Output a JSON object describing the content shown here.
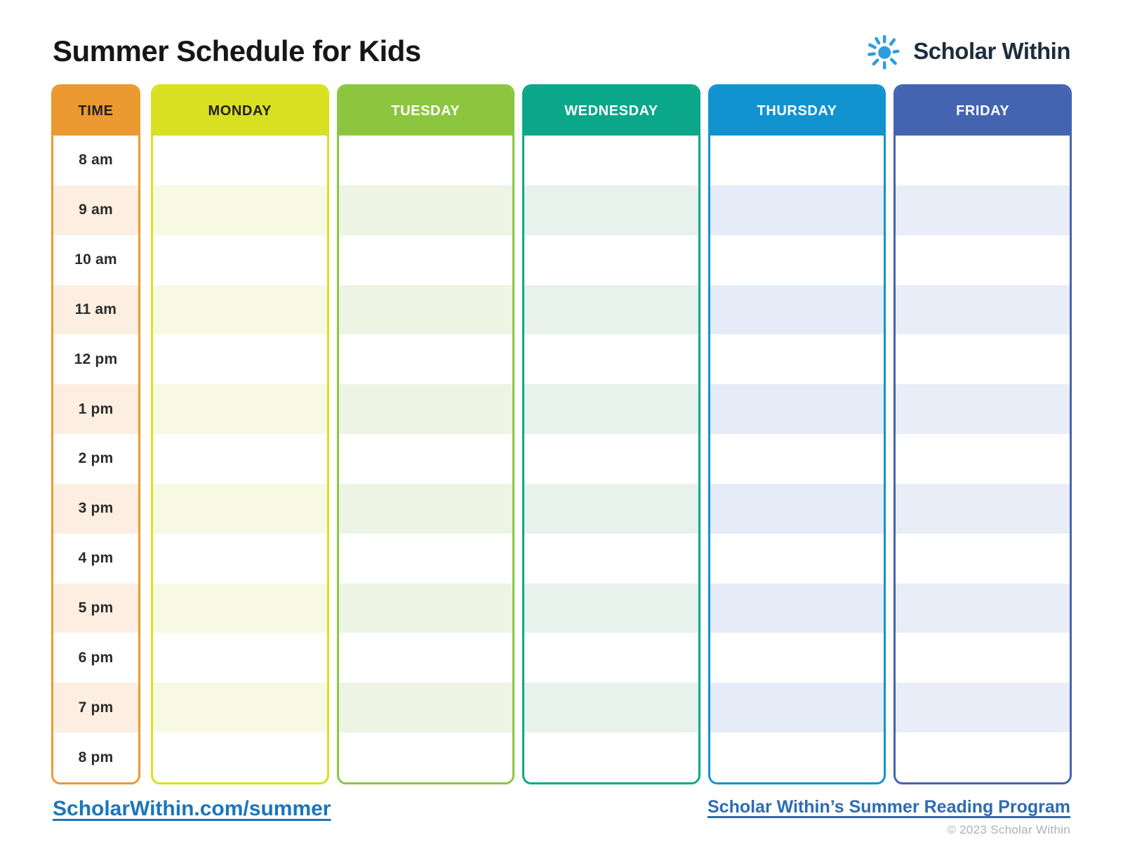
{
  "page": {
    "title": "Summer Schedule for Kids",
    "logo": {
      "text": "Scholar Within",
      "sun_color": "#2f9edf",
      "text_color": "#1e2d3d"
    },
    "footer": {
      "left_link": "ScholarWithin.com/summer",
      "right_link": "Scholar Within’s Summer Reading Program",
      "copyright": "© 2023 Scholar Within",
      "left_link_color": "#1b75bc",
      "right_link_color": "#2d6cb3",
      "copyright_color": "#afb1b4"
    }
  },
  "schedule": {
    "time_column": {
      "header": "TIME",
      "color": "#ea9a31",
      "tint": "#fcefe1",
      "header_text_color": "#231f20",
      "times": [
        "8 am",
        "9 am",
        "10 am",
        "11 am",
        "12 pm",
        "1 pm",
        "2 pm",
        "3 pm",
        "4 pm",
        "5 pm",
        "6 pm",
        "7 pm",
        "8 pm"
      ]
    },
    "day_columns": [
      {
        "label": "MONDAY",
        "color": "#d9e021",
        "tint": "#f8f9e2",
        "header_text_color": "#231f20"
      },
      {
        "label": "TUESDAY",
        "color": "#8cc63f",
        "tint": "#edf4e3",
        "header_text_color": "#ffffff"
      },
      {
        "label": "WEDNESDAY",
        "color": "#0aa78b",
        "tint": "#e7f2ec",
        "header_text_color": "#ffffff"
      },
      {
        "label": "THURSDAY",
        "color": "#1193d0",
        "tint": "#e5ebf7",
        "header_text_color": "#ffffff"
      },
      {
        "label": "FRIDAY",
        "color": "#4464b2",
        "tint": "#e9edf8",
        "header_text_color": "#ffffff"
      }
    ]
  }
}
